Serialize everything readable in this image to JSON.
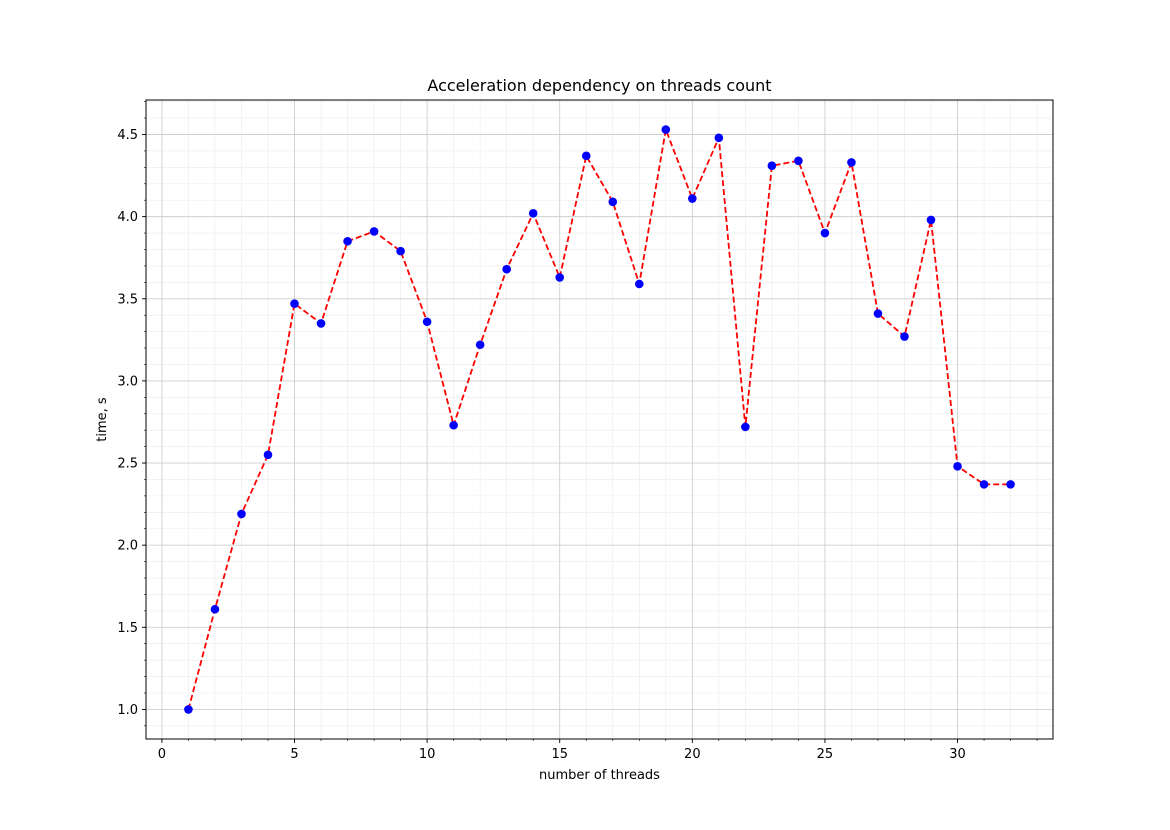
{
  "chart_data": {
    "type": "line",
    "title": "Acceleration dependency on threads count",
    "xlabel": "number of threads",
    "ylabel": "time, s",
    "xlim": [
      -0.6,
      33.6
    ],
    "ylim": [
      0.82,
      4.71
    ],
    "xticks": [
      0,
      5,
      10,
      15,
      20,
      25,
      30
    ],
    "xtick_labels": [
      "0",
      "5",
      "10",
      "15",
      "20",
      "25",
      "30"
    ],
    "yticks": [
      1.0,
      1.5,
      2.0,
      2.5,
      3.0,
      3.5,
      4.0,
      4.5
    ],
    "ytick_labels": [
      "1.0",
      "1.5",
      "2.0",
      "2.5",
      "3.0",
      "3.5",
      "4.0",
      "4.5"
    ],
    "grid": true,
    "minor_grid": true,
    "x": [
      1,
      2,
      3,
      4,
      5,
      6,
      7,
      8,
      9,
      10,
      11,
      12,
      13,
      14,
      15,
      16,
      17,
      18,
      19,
      20,
      21,
      22,
      23,
      24,
      25,
      26,
      27,
      28,
      29,
      30,
      31,
      32
    ],
    "series": [
      {
        "values": [
          1.0,
          1.61,
          2.19,
          2.55,
          3.47,
          3.35,
          3.85,
          3.91,
          3.79,
          3.36,
          2.73,
          3.22,
          3.68,
          4.02,
          3.63,
          4.37,
          4.09,
          3.59,
          4.53,
          4.11,
          4.48,
          2.72,
          4.31,
          4.34,
          3.9,
          4.33,
          3.41,
          3.27,
          3.98,
          2.48,
          2.37,
          2.37
        ],
        "line_color": "#ff0000",
        "line_style": "dashed",
        "marker_color": "#0000ff",
        "marker": "circle"
      }
    ]
  }
}
